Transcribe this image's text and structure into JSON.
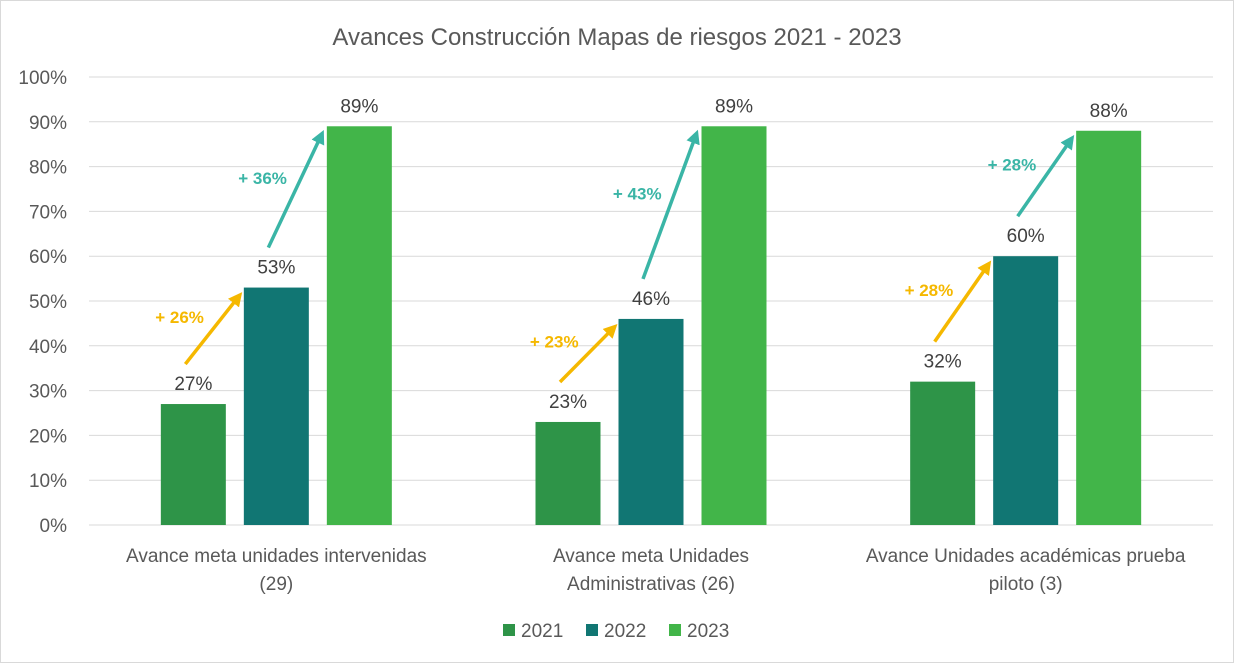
{
  "chart_data": {
    "type": "bar",
    "title": "Avances Construcción Mapas de riesgos  2021 - 2023",
    "categories": [
      [
        "Avance meta unidades intervenidas",
        "(29)"
      ],
      [
        "Avance meta Unidades",
        "Administrativas (26)"
      ],
      [
        "Avance Unidades académicas  prueba",
        "piloto (3)"
      ]
    ],
    "series": [
      {
        "name": "2021",
        "color": "#2e9448",
        "values": [
          27,
          23,
          32
        ],
        "labels": [
          "27%",
          "23%",
          "32%"
        ]
      },
      {
        "name": "2022",
        "color": "#117673",
        "values": [
          53,
          46,
          60
        ],
        "labels": [
          "53%",
          "46%",
          "60%"
        ]
      },
      {
        "name": "2023",
        "color": "#42b549",
        "values": [
          89,
          89,
          88
        ],
        "labels": [
          "89%",
          "89%",
          "88%"
        ]
      }
    ],
    "ylim": [
      0,
      100
    ],
    "yticks": [
      "0%",
      "10%",
      "20%",
      "30%",
      "40%",
      "50%",
      "60%",
      "70%",
      "80%",
      "90%",
      "100%"
    ],
    "grid": true,
    "legend_position": "bottom",
    "annotations": [
      {
        "text": "+ 26%",
        "group": 0,
        "step": "2021-2022",
        "color": "#f5b800"
      },
      {
        "text": "+ 36%",
        "group": 0,
        "step": "2022-2023",
        "color": "#3ab5a6"
      },
      {
        "text": "+ 23%",
        "group": 1,
        "step": "2021-2022",
        "color": "#f5b800"
      },
      {
        "text": "+ 43%",
        "group": 1,
        "step": "2022-2023",
        "color": "#3ab5a6"
      },
      {
        "text": "+ 28%",
        "group": 2,
        "step": "2021-2022",
        "color": "#f5b800"
      },
      {
        "text": "+ 28%",
        "group": 2,
        "step": "2022-2023",
        "color": "#3ab5a6"
      }
    ]
  }
}
